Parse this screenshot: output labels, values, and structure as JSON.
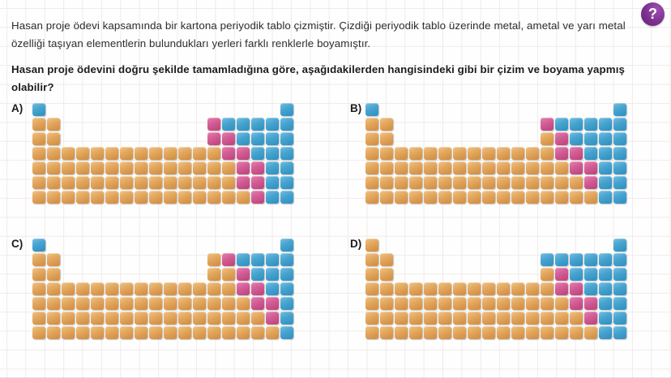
{
  "question": {
    "paragraph": "Hasan proje ödevi kapsamında bir kartona periyodik tablo çizmiştir. Çizdiği periyodik tablo üzerinde metal, ametal ve yarı metal özelliği taşıyan elementlerin bulundukları yerleri farklı renklerle boyamıştır.",
    "prompt": "Hasan proje ödevini doğru şekilde tamamladığına göre, aşağıdakilerden hangisindeki gibi bir çizim ve boyama yapmış olabilir?",
    "help_icon_glyph": "?"
  },
  "colors": {
    "metal_orange": "#E2A65D",
    "semimetal_pink": "#D25C95",
    "nonmetal_blue": "#47A3CE",
    "help_icon_purple": "#7C2F8E",
    "grid_paper_line": "#F2EAEA"
  },
  "cell_legend": {
    "O": "metal-orange",
    "P": "yari-metal-pink",
    "B": "ametal-blue",
    ".": "empty"
  },
  "options": [
    {
      "label": "A)",
      "grid": [
        "B................B",
        "OO..........PBBBBB",
        "OO..........PPBBBB",
        "OOOOOOOOOOOOOPPBBB",
        "OOOOOOOOOOOOOOPPBB",
        "OOOOOOOOOOOOOOPPBB",
        "OOOOOOOOOOOOOOOPBB"
      ]
    },
    {
      "label": "B)",
      "grid": [
        "B................B",
        "OO..........PBBBBB",
        "OO..........OPBBBB",
        "OOOOOOOOOOOOOPPBBB",
        "OOOOOOOOOOOOOOPPBB",
        "OOOOOOOOOOOOOOOPBB",
        "OOOOOOOOOOOOOOOOBB"
      ]
    },
    {
      "label": "C)",
      "grid": [
        "B................B",
        "OO..........OPBBBB",
        "OO..........OOPBBB",
        "OOOOOOOOOOOOOOPPBB",
        "OOOOOOOOOOOOOOOPPB",
        "OOOOOOOOOOOOOOOOPB",
        "OOOOOOOOOOOOOOOOOB"
      ]
    },
    {
      "label": "D)",
      "grid": [
        "O................B",
        "OO..........BBBBBB",
        "OO..........OPBBBB",
        "OOOOOOOOOOOOOPPBBB",
        "OOOOOOOOOOOOOOPPBB",
        "OOOOOOOOOOOOOOOPBB",
        "OOOOOOOOOOOOOOOOBB"
      ]
    }
  ]
}
